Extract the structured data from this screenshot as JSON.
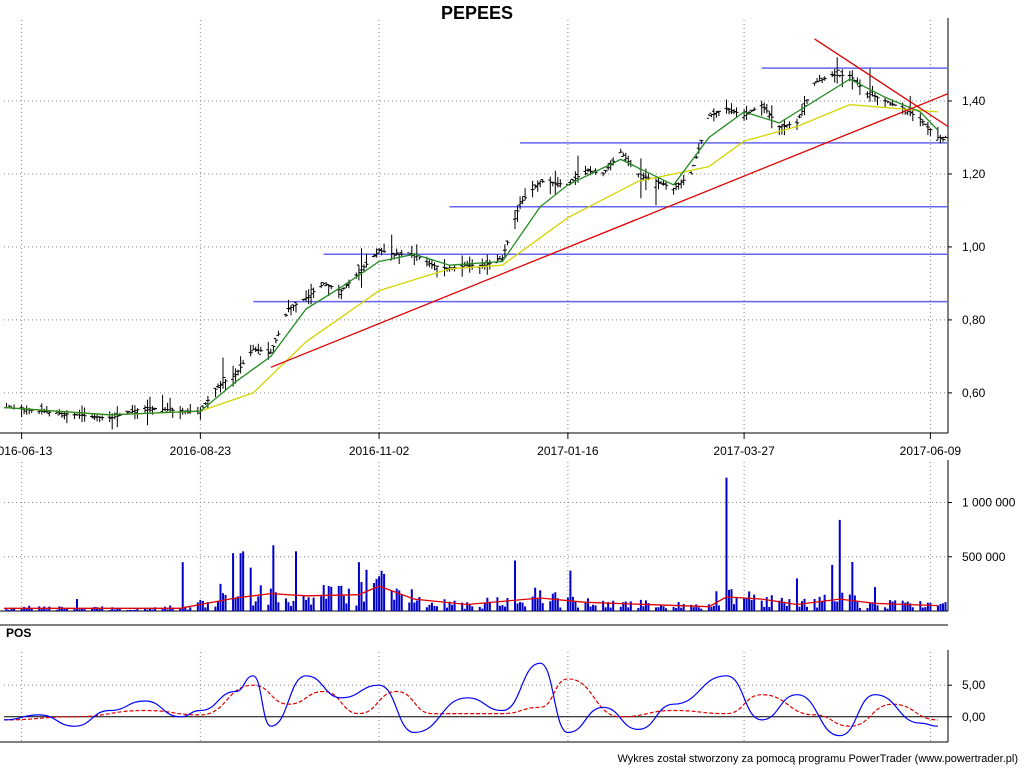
{
  "title": "PEPEES",
  "footer": "Wykres został stworzony za pomocą programu PowerTrader (www.powertrader.pl)",
  "colors": {
    "price_bar": "#000000",
    "fast_ma": "#228B22",
    "slow_ma": "#D4D400",
    "trend_line": "#E00000",
    "level_line": "#6464F0",
    "volume_bar": "#0000C8",
    "volume_ma": "#E00000",
    "pos_line": "#0000FF",
    "pos_signal": "#E00000"
  },
  "chart_data": [
    {
      "type": "ohlc",
      "title": "PEPEES",
      "x_tick_labels": [
        "2016-06-13",
        "2016-08-23",
        "2016-11-02",
        "2017-01-16",
        "2017-03-27",
        "2017-06-09"
      ],
      "y_tick_labels": [
        "0,60",
        "0,80",
        "1,00",
        "1,20",
        "1,40"
      ],
      "y_ticks": [
        0.6,
        0.8,
        1.0,
        1.2,
        1.4
      ],
      "ylim": [
        0.49,
        1.6
      ],
      "x_range": [
        "2016-06-06",
        "2017-06-16"
      ],
      "grid": true,
      "close_series": [
        [
          "2016-06-06",
          0.56
        ],
        [
          "2016-06-20",
          0.55
        ],
        [
          "2016-07-04",
          0.54
        ],
        [
          "2016-07-18",
          0.53
        ],
        [
          "2016-08-01",
          0.56
        ],
        [
          "2016-08-15",
          0.55
        ],
        [
          "2016-08-23",
          0.55
        ],
        [
          "2016-08-30",
          0.62
        ],
        [
          "2016-09-06",
          0.65
        ],
        [
          "2016-09-13",
          0.72
        ],
        [
          "2016-09-20",
          0.71
        ],
        [
          "2016-09-27",
          0.83
        ],
        [
          "2016-10-04",
          0.86
        ],
        [
          "2016-10-11",
          0.9
        ],
        [
          "2016-10-18",
          0.88
        ],
        [
          "2016-10-25",
          0.93
        ],
        [
          "2016-11-02",
          0.99
        ],
        [
          "2016-11-09",
          0.98
        ],
        [
          "2016-11-16",
          0.98
        ],
        [
          "2016-11-23",
          0.95
        ],
        [
          "2016-11-30",
          0.94
        ],
        [
          "2016-12-07",
          0.95
        ],
        [
          "2016-12-14",
          0.95
        ],
        [
          "2016-12-21",
          0.97
        ],
        [
          "2016-12-28",
          1.12
        ],
        [
          "2017-01-05",
          1.18
        ],
        [
          "2017-01-16",
          1.17
        ],
        [
          "2017-01-23",
          1.21
        ],
        [
          "2017-01-30",
          1.2
        ],
        [
          "2017-02-06",
          1.26
        ],
        [
          "2017-02-13",
          1.2
        ],
        [
          "2017-02-20",
          1.18
        ],
        [
          "2017-02-27",
          1.16
        ],
        [
          "2017-03-06",
          1.2
        ],
        [
          "2017-03-13",
          1.36
        ],
        [
          "2017-03-20",
          1.38
        ],
        [
          "2017-03-27",
          1.36
        ],
        [
          "2017-04-03",
          1.39
        ],
        [
          "2017-04-10",
          1.33
        ],
        [
          "2017-04-17",
          1.34
        ],
        [
          "2017-04-24",
          1.45
        ],
        [
          "2017-05-01",
          1.47
        ],
        [
          "2017-05-08",
          1.47
        ],
        [
          "2017-05-15",
          1.42
        ],
        [
          "2017-05-22",
          1.4
        ],
        [
          "2017-05-29",
          1.38
        ],
        [
          "2017-06-05",
          1.35
        ],
        [
          "2017-06-12",
          1.3
        ]
      ],
      "fast_ma": [
        [
          "2016-06-06",
          0.56
        ],
        [
          "2016-07-18",
          0.54
        ],
        [
          "2016-08-23",
          0.55
        ],
        [
          "2016-09-06",
          0.63
        ],
        [
          "2016-09-20",
          0.7
        ],
        [
          "2016-10-04",
          0.83
        ],
        [
          "2016-10-18",
          0.89
        ],
        [
          "2016-11-02",
          0.96
        ],
        [
          "2016-11-16",
          0.98
        ],
        [
          "2016-11-30",
          0.95
        ],
        [
          "2016-12-21",
          0.96
        ],
        [
          "2017-01-05",
          1.11
        ],
        [
          "2017-01-16",
          1.17
        ],
        [
          "2017-02-06",
          1.24
        ],
        [
          "2017-02-27",
          1.17
        ],
        [
          "2017-03-13",
          1.3
        ],
        [
          "2017-03-27",
          1.37
        ],
        [
          "2017-04-10",
          1.34
        ],
        [
          "2017-04-24",
          1.4
        ],
        [
          "2017-05-08",
          1.46
        ],
        [
          "2017-05-22",
          1.41
        ],
        [
          "2017-06-05",
          1.37
        ],
        [
          "2017-06-12",
          1.32
        ]
      ],
      "slow_ma": [
        [
          "2016-06-06",
          0.56
        ],
        [
          "2016-07-18",
          0.54
        ],
        [
          "2016-08-23",
          0.55
        ],
        [
          "2016-09-13",
          0.6
        ],
        [
          "2016-10-04",
          0.74
        ],
        [
          "2016-11-02",
          0.88
        ],
        [
          "2016-11-30",
          0.94
        ],
        [
          "2016-12-21",
          0.95
        ],
        [
          "2017-01-16",
          1.08
        ],
        [
          "2017-02-13",
          1.18
        ],
        [
          "2017-03-13",
          1.22
        ],
        [
          "2017-03-27",
          1.29
        ],
        [
          "2017-04-17",
          1.33
        ],
        [
          "2017-05-08",
          1.39
        ],
        [
          "2017-06-12",
          1.37
        ]
      ],
      "trend_lines": [
        {
          "from": [
            "2016-09-20",
            0.67
          ],
          "to": [
            "2017-06-16",
            1.42
          ]
        },
        {
          "from": [
            "2017-04-24",
            1.57
          ],
          "to": [
            "2017-06-16",
            1.33
          ]
        }
      ],
      "levels": [
        {
          "value": 1.49,
          "from": "2017-04-03"
        },
        {
          "value": 1.285,
          "from": "2016-12-28"
        },
        {
          "value": 1.11,
          "from": "2016-11-30"
        },
        {
          "value": 0.98,
          "from": "2016-10-11"
        },
        {
          "value": 0.85,
          "from": "2016-09-13"
        }
      ]
    },
    {
      "type": "bar",
      "title": "",
      "y_tick_labels": [
        "500 000",
        "1 000 000"
      ],
      "y_ticks": [
        500000,
        1000000
      ],
      "ylim": [
        0,
        1300000
      ],
      "bars": [
        [
          "2016-08-16",
          450000
        ],
        [
          "2016-08-31",
          250000
        ],
        [
          "2016-09-09",
          550000
        ],
        [
          "2016-09-12",
          400000
        ],
        [
          "2016-09-30",
          550000
        ],
        [
          "2016-10-25",
          450000
        ],
        [
          "2016-10-28",
          380000
        ],
        [
          "2016-11-02",
          320000
        ],
        [
          "2017-03-20",
          1230000
        ],
        [
          "2017-04-17",
          300000
        ],
        [
          "2017-05-04",
          840000
        ],
        [
          "2017-05-18",
          220000
        ]
      ],
      "volume_ma": [
        [
          "2016-06-06",
          25000
        ],
        [
          "2016-08-15",
          25000
        ],
        [
          "2016-08-23",
          60000
        ],
        [
          "2016-09-06",
          120000
        ],
        [
          "2016-09-20",
          160000
        ],
        [
          "2016-10-04",
          140000
        ],
        [
          "2016-10-25",
          150000
        ],
        [
          "2016-11-02",
          230000
        ],
        [
          "2016-11-16",
          110000
        ],
        [
          "2016-12-07",
          60000
        ],
        [
          "2017-01-05",
          120000
        ],
        [
          "2017-01-23",
          80000
        ],
        [
          "2017-03-13",
          40000
        ],
        [
          "2017-03-20",
          130000
        ],
        [
          "2017-04-03",
          110000
        ],
        [
          "2017-04-17",
          60000
        ],
        [
          "2017-05-04",
          110000
        ],
        [
          "2017-05-18",
          70000
        ],
        [
          "2017-06-12",
          50000
        ]
      ]
    },
    {
      "type": "line",
      "title": "POS",
      "y_tick_labels": [
        "0,00",
        "5,00"
      ],
      "y_ticks": [
        0,
        5
      ],
      "ylim": [
        -4,
        9
      ],
      "series": [
        {
          "values": [
            [
              "2016-06-06",
              -0.5
            ],
            [
              "2016-06-20",
              0.3
            ],
            [
              "2016-07-04",
              -1.5
            ],
            [
              "2016-07-18",
              1.0
            ],
            [
              "2016-08-01",
              2.5
            ],
            [
              "2016-08-15",
              0.0
            ],
            [
              "2016-08-23",
              1.0
            ],
            [
              "2016-09-06",
              4.0
            ],
            [
              "2016-09-13",
              6.5
            ],
            [
              "2016-09-20",
              -1.5
            ],
            [
              "2016-10-04",
              6.5
            ],
            [
              "2016-10-18",
              3.0
            ],
            [
              "2016-11-02",
              5.0
            ],
            [
              "2016-11-16",
              -2.5
            ],
            [
              "2016-12-07",
              3.0
            ],
            [
              "2016-12-21",
              1.0
            ],
            [
              "2017-01-05",
              8.5
            ],
            [
              "2017-01-16",
              -2.5
            ],
            [
              "2017-01-30",
              1.5
            ],
            [
              "2017-02-13",
              -2.0
            ],
            [
              "2017-02-27",
              2.0
            ],
            [
              "2017-03-20",
              6.5
            ],
            [
              "2017-04-03",
              -0.5
            ],
            [
              "2017-04-17",
              3.5
            ],
            [
              "2017-05-04",
              -3.0
            ],
            [
              "2017-05-18",
              3.5
            ],
            [
              "2017-06-05",
              -1.0
            ],
            [
              "2017-06-12",
              -1.5
            ]
          ]
        },
        {
          "values": [
            [
              "2016-06-06",
              -0.5
            ],
            [
              "2016-07-04",
              0.0
            ],
            [
              "2016-08-01",
              1.0
            ],
            [
              "2016-08-23",
              0.3
            ],
            [
              "2016-09-13",
              5.0
            ],
            [
              "2016-09-27",
              2.0
            ],
            [
              "2016-10-11",
              4.0
            ],
            [
              "2016-10-25",
              0.5
            ],
            [
              "2016-11-09",
              4.0
            ],
            [
              "2016-11-23",
              0.5
            ],
            [
              "2016-12-21",
              0.5
            ],
            [
              "2017-01-05",
              1.5
            ],
            [
              "2017-01-16",
              6.0
            ],
            [
              "2017-02-06",
              0.0
            ],
            [
              "2017-02-27",
              1.0
            ],
            [
              "2017-03-20",
              0.5
            ],
            [
              "2017-04-03",
              3.5
            ],
            [
              "2017-04-24",
              0.3
            ],
            [
              "2017-05-08",
              -1.5
            ],
            [
              "2017-05-25",
              2.0
            ],
            [
              "2017-06-12",
              -0.5
            ]
          ]
        }
      ]
    }
  ]
}
